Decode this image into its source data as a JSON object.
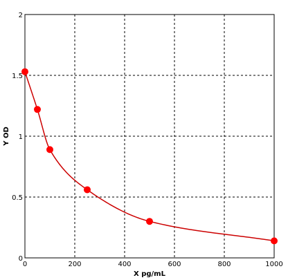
{
  "chart_data": {
    "type": "scatter",
    "title": "",
    "xlabel": "X pg/mL",
    "ylabel": "Y OD",
    "xlim": [
      0,
      1000
    ],
    "ylim": [
      0,
      2
    ],
    "x_ticks": [
      0,
      200,
      400,
      600,
      800,
      1000
    ],
    "y_ticks": [
      0,
      0.5,
      1,
      1.5,
      2
    ],
    "x_tick_labels": [
      "0",
      "200",
      "400",
      "600",
      "800",
      "1000"
    ],
    "y_tick_labels": [
      "0",
      "0.5",
      "1",
      "1.5",
      "2"
    ],
    "grid": true,
    "grid_style": "dashed",
    "legend": "none",
    "series": [
      {
        "points": [
          {
            "x": 0,
            "y": 1.53
          },
          {
            "x": 50,
            "y": 1.22
          },
          {
            "x": 100,
            "y": 0.89
          },
          {
            "x": 250,
            "y": 0.56
          },
          {
            "x": 500,
            "y": 0.3
          },
          {
            "x": 1000,
            "y": 0.14
          }
        ],
        "marker_color": "#ff0000",
        "curve_color": "#cc0000",
        "fit": "smooth-curve"
      }
    ]
  }
}
